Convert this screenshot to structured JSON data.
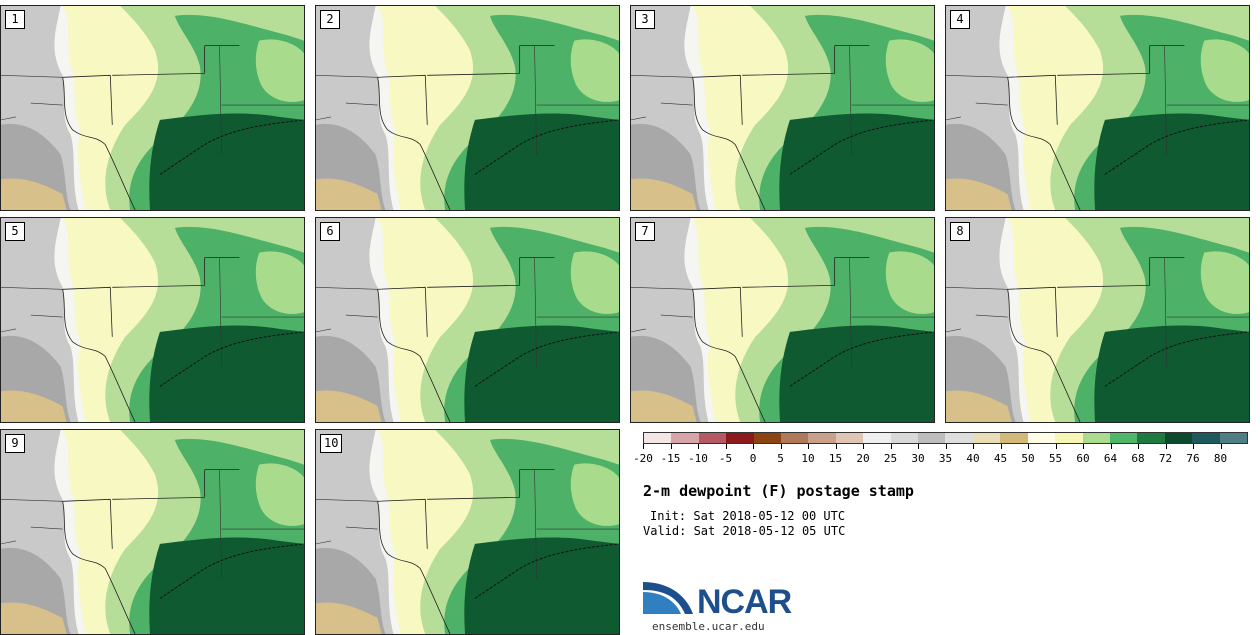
{
  "panels": [
    {
      "label": "1"
    },
    {
      "label": "2"
    },
    {
      "label": "3"
    },
    {
      "label": "4"
    },
    {
      "label": "5"
    },
    {
      "label": "6"
    },
    {
      "label": "7"
    },
    {
      "label": "8"
    },
    {
      "label": "9"
    },
    {
      "label": "10"
    }
  ],
  "colorbar": {
    "colors": [
      "#f5e6e6",
      "#d8a4a8",
      "#b35a63",
      "#8c1a1c",
      "#8b4513",
      "#b07a5a",
      "#c9a08a",
      "#e0c4b4",
      "#efefef",
      "#d9d9d9",
      "#bdbdbd",
      "#dedede",
      "#e8ddb5",
      "#d2b879",
      "#fefee8",
      "#f6f7b5",
      "#aadb8f",
      "#4fb66a",
      "#1f7a40",
      "#0b4a2c",
      "#1e5a5c",
      "#4f7f84"
    ],
    "tick_labels": [
      "-20",
      "-15",
      "-10",
      "-5",
      "0",
      "5",
      "10",
      "15",
      "20",
      "25",
      "30",
      "35",
      "40",
      "45",
      "50",
      "55",
      "60",
      "64",
      "68",
      "72",
      "76",
      "80"
    ]
  },
  "title": "2-m dewpoint (F) postage stamp",
  "init": "Init: Sat 2018-05-12 00 UTC",
  "valid": "Valid: Sat 2018-05-12 05 UTC",
  "logo": {
    "text": "NCAR",
    "site": "ensemble.ucar.edu"
  }
}
